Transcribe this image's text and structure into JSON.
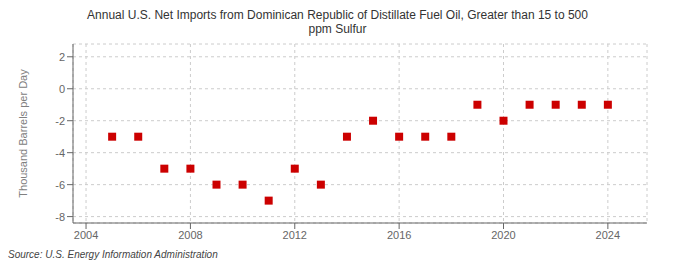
{
  "chart_data": {
    "type": "scatter",
    "title": "Annual U.S. Net Imports from Dominican Republic of Distillate Fuel Oil, Greater than 15 to 500\nppm Sulfur",
    "y_label": "Thousand Barrels per Day",
    "annotation": "Source: U.S. Energy Information Administration",
    "x": [
      2005,
      2006,
      2007,
      2008,
      2009,
      2010,
      2011,
      2012,
      2013,
      2014,
      2015,
      2016,
      2017,
      2018,
      2019,
      2020,
      2021,
      2022,
      2023,
      2024
    ],
    "values": [
      -3,
      -3,
      -5,
      -5,
      -6,
      -6,
      -7,
      -5,
      -6,
      -3,
      -2,
      -3,
      -3,
      -3,
      -1,
      -2,
      -1,
      -1,
      -1,
      -1
    ],
    "color": "#cc0000",
    "marker": "square",
    "xlim": [
      2003.5,
      2025.5
    ],
    "ylim": [
      -8.4,
      2.8
    ],
    "xticks": [
      2004,
      2008,
      2012,
      2016,
      2020,
      2024
    ],
    "yticks": [
      -8,
      -6,
      -4,
      -2,
      0,
      2
    ],
    "grid": true
  }
}
